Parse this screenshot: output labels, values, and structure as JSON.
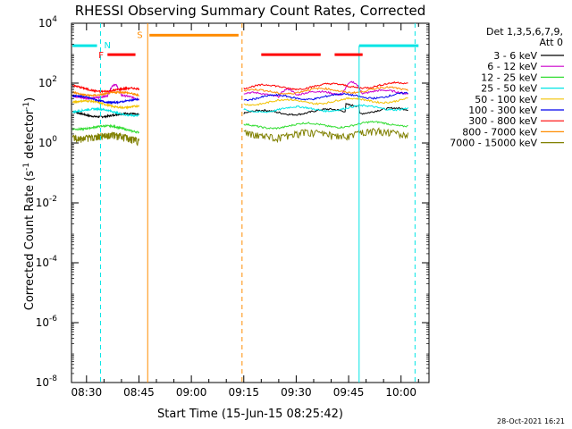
{
  "chart_data": {
    "type": "line",
    "title": "RHESSI Observing Summary Count Rates, Corrected",
    "xlabel": "Start Time (15-Jun-15 08:25:42)",
    "ylabel_main": "Corrected Count Rate (s",
    "ylabel_exp1": "-1",
    "ylabel_mid": " detector",
    "ylabel_exp2": "-1",
    "ylabel_end": ")",
    "x_range_min": [
      25.7,
      128
    ],
    "y_log_range": [
      -8,
      4
    ],
    "x_ticks": [
      {
        "min": 30,
        "label": "08:30"
      },
      {
        "min": 45,
        "label": "08:45"
      },
      {
        "min": 60,
        "label": "09:00"
      },
      {
        "min": 75,
        "label": "09:15"
      },
      {
        "min": 90,
        "label": "09:30"
      },
      {
        "min": 105,
        "label": "09:45"
      },
      {
        "min": 120,
        "label": "10:00"
      }
    ],
    "y_ticks": [
      {
        "exp": 4,
        "base": "10",
        "sup": "4"
      },
      {
        "exp": 2,
        "base": "10",
        "sup": "2"
      },
      {
        "exp": 0,
        "base": "10",
        "sup": "0"
      },
      {
        "exp": -2,
        "base": "10",
        "sup": "-2"
      },
      {
        "exp": -4,
        "base": "10",
        "sup": "-4"
      },
      {
        "exp": -6,
        "base": "10",
        "sup": "-6"
      },
      {
        "exp": -8,
        "base": "10",
        "sup": "-8"
      }
    ],
    "legend_header": [
      "Det 1,3,5,6,7,9,",
      "Att 0"
    ],
    "series": [
      {
        "name": "3 - 6 keV",
        "color": "#000000",
        "base": 1.0
      },
      {
        "name": "6 - 12 keV",
        "color": "#cc00cc",
        "base": 1.6
      },
      {
        "name": "12 - 25 keV",
        "color": "#33dd33",
        "base": 0.55
      },
      {
        "name": "25 - 50 keV",
        "color": "#00e5e5",
        "base": 1.1
      },
      {
        "name": "50 - 100 keV",
        "color": "#f2c200",
        "base": 1.35
      },
      {
        "name": "100 - 300 keV",
        "color": "#0000ee",
        "base": 1.5
      },
      {
        "name": "300 - 800 keV",
        "color": "#ff0000",
        "base": 1.85
      },
      {
        "name": "800 - 7000 keV",
        "color": "#ff8c00",
        "base": 1.7
      },
      {
        "name": "7000 - 15000 keV",
        "color": "#808000",
        "base": 0.3
      }
    ],
    "data_segments_min": [
      [
        26,
        45
      ],
      [
        75,
        122
      ]
    ],
    "annotations": {
      "N": {
        "label": "N",
        "color": "#00e5e5",
        "bars_min": [
          [
            26,
            33
          ],
          [
            108,
            125
          ]
        ],
        "log_y": 3.25,
        "lines_min": [
          34,
          124
        ]
      },
      "S": {
        "label": "S",
        "color": "#ff8c00",
        "bars_min": [
          [
            48,
            73.5
          ]
        ],
        "log_y": 3.6,
        "solid_min": 47.5,
        "dashed_min": 74.5
      },
      "F": {
        "label": "F",
        "color": "#ff0000",
        "bars_min": [
          [
            36,
            44
          ],
          [
            80,
            97
          ],
          [
            101,
            109
          ]
        ],
        "log_y": 2.95,
        "solid_min": 107.5
      }
    },
    "footer_date": "28-Oct-2021 16:21"
  }
}
